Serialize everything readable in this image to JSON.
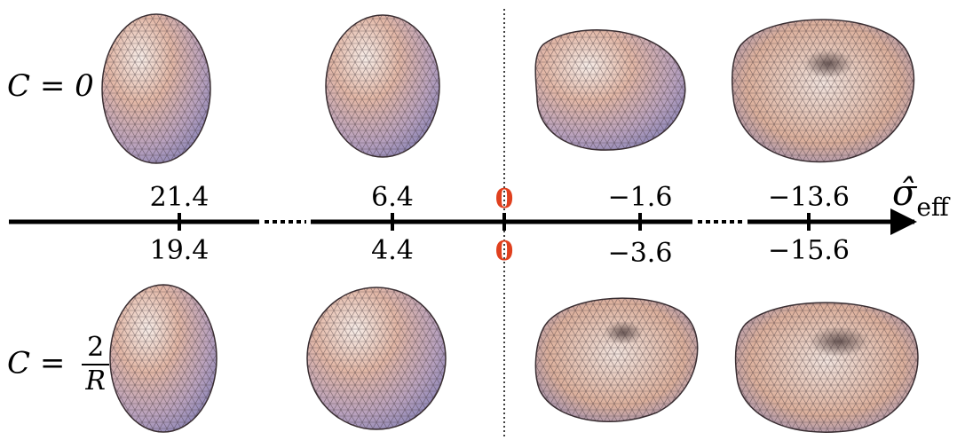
{
  "row_labels": {
    "top": "C = 0",
    "bottom_prefix": "C =",
    "bottom_numerator": "2",
    "bottom_denominator": "R"
  },
  "axis": {
    "label_sigma": "σ̂",
    "label_sub": "eff",
    "zero_top": "0",
    "zero_bottom": "0",
    "zero_color": "#e0401e"
  },
  "ticks_top": [
    "21.4",
    "6.4",
    "−1.6",
    "−13.6"
  ],
  "ticks_bottom": [
    "19.4",
    "4.4",
    "−3.6",
    "−15.6"
  ],
  "shapes": {
    "top": [
      "sphere",
      "sphere",
      "elongated",
      "red-blood-cell"
    ],
    "bottom": [
      "sphere",
      "sphere",
      "dimpled",
      "red-blood-cell"
    ]
  },
  "colors": {
    "mesh_light": "#f3e6de",
    "mesh_mid": "#c9a4a0",
    "mesh_blue": "#8f8fc4",
    "mesh_warm": "#d9a07e"
  }
}
